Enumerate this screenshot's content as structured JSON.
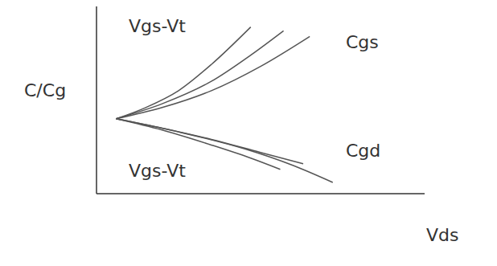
{
  "chart_data": {
    "type": "line",
    "x_label": "Vds",
    "y_label": "C/Cg",
    "xlim": [
      0,
      10
    ],
    "ylim": [
      0,
      10
    ],
    "tick_labels": false,
    "grid": false,
    "annotations": [
      "Vgs-Vt",
      "Cgs",
      "Vgs-Vt",
      "Cgd"
    ],
    "series": [
      {
        "color": "#555555",
        "x": [
          0.6,
          1.5,
          2.5,
          3.5,
          4.7
        ],
        "values": [
          4.0,
          4.6,
          5.5,
          6.9,
          8.9
        ]
      },
      {
        "color": "#555555",
        "x": [
          0.6,
          2,
          3.5,
          4.7,
          5.7
        ],
        "values": [
          4.0,
          4.8,
          6.0,
          7.4,
          8.7
        ]
      },
      {
        "color": "#555555",
        "x": [
          0.6,
          2,
          3.5,
          5,
          6.5
        ],
        "values": [
          4.0,
          4.6,
          5.5,
          6.8,
          8.4
        ]
      },
      {
        "color": "#555555",
        "x": [
          0.6,
          2,
          3.5,
          4.7,
          5.6
        ],
        "values": [
          4.0,
          3.4,
          2.6,
          1.9,
          1.3
        ]
      },
      {
        "color": "#555555",
        "x": [
          0.6,
          2,
          3.5,
          5,
          6.3
        ],
        "values": [
          4.0,
          3.5,
          2.9,
          2.2,
          1.6
        ]
      },
      {
        "color": "#555555",
        "x": [
          0.6,
          2.5,
          4.5,
          6,
          7.2
        ],
        "values": [
          4.0,
          3.3,
          2.4,
          1.5,
          0.6
        ]
      }
    ]
  }
}
